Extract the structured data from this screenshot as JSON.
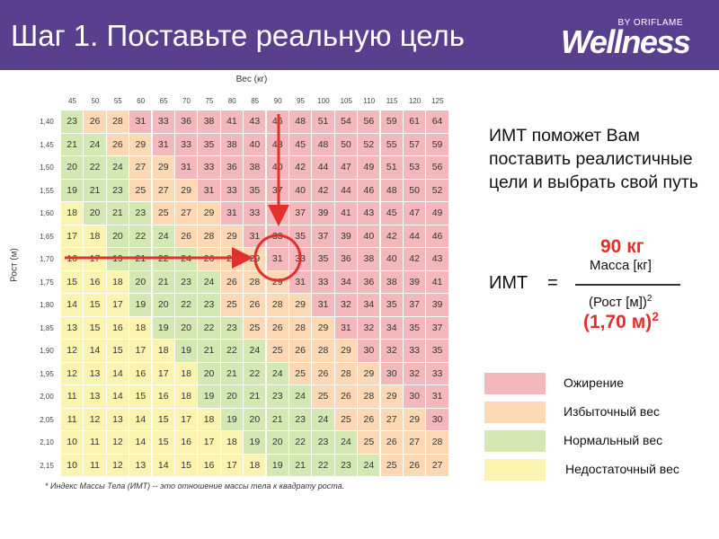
{
  "header": {
    "title": "Шаг 1. Поставьте реальную цель",
    "brand_by": "BY ORIFLAME",
    "brand_name": "Wellness"
  },
  "table": {
    "x_label": "Вес (кг)",
    "y_label": "Рост (м)",
    "weights": [
      "45",
      "50",
      "55",
      "60",
      "65",
      "70",
      "75",
      "80",
      "85",
      "90",
      "95",
      "100",
      "105",
      "110",
      "115",
      "120",
      "125"
    ],
    "heights": [
      "1,40",
      "1,45",
      "1,50",
      "1,55",
      "1,60",
      "1,65",
      "1,70",
      "1,75",
      "1,80",
      "1,85",
      "1,90",
      "1,95",
      "2,00",
      "2,05",
      "2,10",
      "2,15"
    ],
    "rows": [
      [
        23,
        26,
        28,
        31,
        33,
        36,
        38,
        41,
        43,
        46,
        48,
        51,
        54,
        56,
        59,
        61,
        64
      ],
      [
        21,
        24,
        26,
        29,
        31,
        33,
        35,
        38,
        40,
        43,
        45,
        48,
        50,
        52,
        55,
        57,
        59
      ],
      [
        20,
        22,
        24,
        27,
        29,
        31,
        33,
        36,
        38,
        40,
        42,
        44,
        47,
        49,
        51,
        53,
        56
      ],
      [
        19,
        21,
        23,
        25,
        27,
        29,
        31,
        33,
        35,
        37,
        40,
        42,
        44,
        46,
        48,
        50,
        52
      ],
      [
        18,
        20,
        21,
        23,
        25,
        27,
        29,
        31,
        33,
        35,
        37,
        39,
        41,
        43,
        45,
        47,
        49
      ],
      [
        17,
        18,
        20,
        22,
        24,
        26,
        28,
        29,
        31,
        33,
        35,
        37,
        39,
        40,
        42,
        44,
        46
      ],
      [
        16,
        17,
        19,
        21,
        22,
        24,
        26,
        28,
        29,
        31,
        33,
        35,
        36,
        38,
        40,
        42,
        43
      ],
      [
        15,
        16,
        18,
        20,
        21,
        23,
        24,
        26,
        28,
        29,
        31,
        33,
        34,
        36,
        38,
        39,
        41
      ],
      [
        14,
        15,
        17,
        19,
        20,
        22,
        23,
        25,
        26,
        28,
        29,
        31,
        32,
        34,
        35,
        37,
        39
      ],
      [
        13,
        15,
        16,
        18,
        19,
        20,
        22,
        23,
        25,
        26,
        28,
        29,
        31,
        32,
        34,
        35,
        37
      ],
      [
        12,
        14,
        15,
        17,
        18,
        19,
        21,
        22,
        24,
        25,
        26,
        28,
        29,
        30,
        32,
        33,
        35
      ],
      [
        12,
        13,
        14,
        16,
        17,
        18,
        20,
        21,
        22,
        24,
        25,
        26,
        28,
        29,
        30,
        32,
        33
      ],
      [
        11,
        13,
        14,
        15,
        16,
        18,
        19,
        20,
        21,
        23,
        24,
        25,
        26,
        28,
        29,
        30,
        31
      ],
      [
        11,
        12,
        13,
        14,
        15,
        17,
        18,
        19,
        20,
        21,
        23,
        24,
        25,
        26,
        27,
        29,
        30
      ],
      [
        10,
        11,
        12,
        14,
        15,
        16,
        17,
        18,
        19,
        20,
        22,
        23,
        24,
        25,
        26,
        27,
        28
      ],
      [
        10,
        11,
        12,
        13,
        14,
        15,
        16,
        17,
        18,
        19,
        21,
        22,
        23,
        24,
        25,
        26,
        27
      ]
    ],
    "highlight": {
      "weight": "90",
      "height": "1,70"
    },
    "footnote": "* Индекс Массы Тела (ИМТ) -- это отношение массы тела к квадрату роста."
  },
  "colors": {
    "obese": "#f3b8bc",
    "overweight": "#fcd9b4",
    "normal": "#d4e8b4",
    "underweight": "#fbf3b0",
    "accent": "#e2302b",
    "header": "#59408f"
  },
  "info": {
    "description": "ИМТ поможет Вам поставить реалистичные цели и выбрать свой путь",
    "imt_label": "ИМТ",
    "equals": "=",
    "mass_value": "90 кг",
    "numerator": "Масса [кг]",
    "denominator_base": "(Рост [м])",
    "denominator_exp": "2",
    "height_value": "(1,70 м)",
    "height_exp": "2"
  },
  "legend": [
    {
      "label": "Ожирение",
      "color_key": "obese"
    },
    {
      "label": "Избыточный вес",
      "color_key": "overweight"
    },
    {
      "label": "Нормальный вес",
      "color_key": "normal"
    },
    {
      "label": "Недостаточный вес",
      "color_key": "underweight"
    }
  ]
}
